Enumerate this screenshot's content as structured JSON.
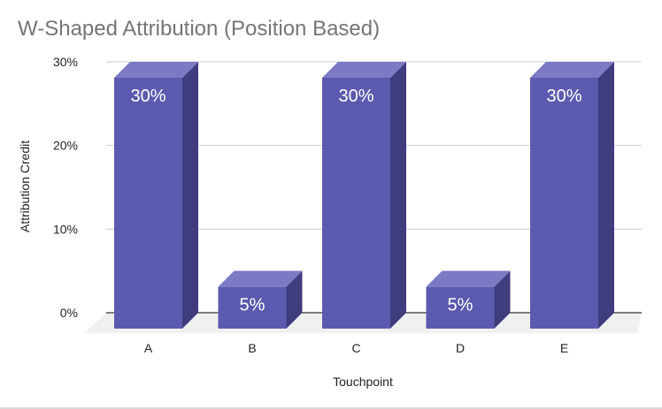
{
  "chart_data": {
    "type": "bar",
    "title": "W-Shaped Attribution (Position Based)",
    "xlabel": "Touchpoint",
    "ylabel": "Attribution Credit",
    "categories": [
      "A",
      "B",
      "C",
      "D",
      "E"
    ],
    "values": [
      30,
      5,
      30,
      5,
      30
    ],
    "data_labels": [
      "30%",
      "5%",
      "30%",
      "5%",
      "30%"
    ],
    "ylim": [
      0,
      30
    ],
    "yticks": [
      0,
      10,
      20,
      30
    ],
    "ytick_labels": [
      "0%",
      "10%",
      "20%",
      "30%"
    ],
    "grid": true,
    "style": "3d",
    "colors": {
      "bar_front": "#5c5aae",
      "bar_top": "#7c7ac4",
      "bar_side": "#3f3d7d",
      "grid": "#cccccc",
      "floor": "#f0f0f0",
      "axis": "#333333"
    }
  }
}
